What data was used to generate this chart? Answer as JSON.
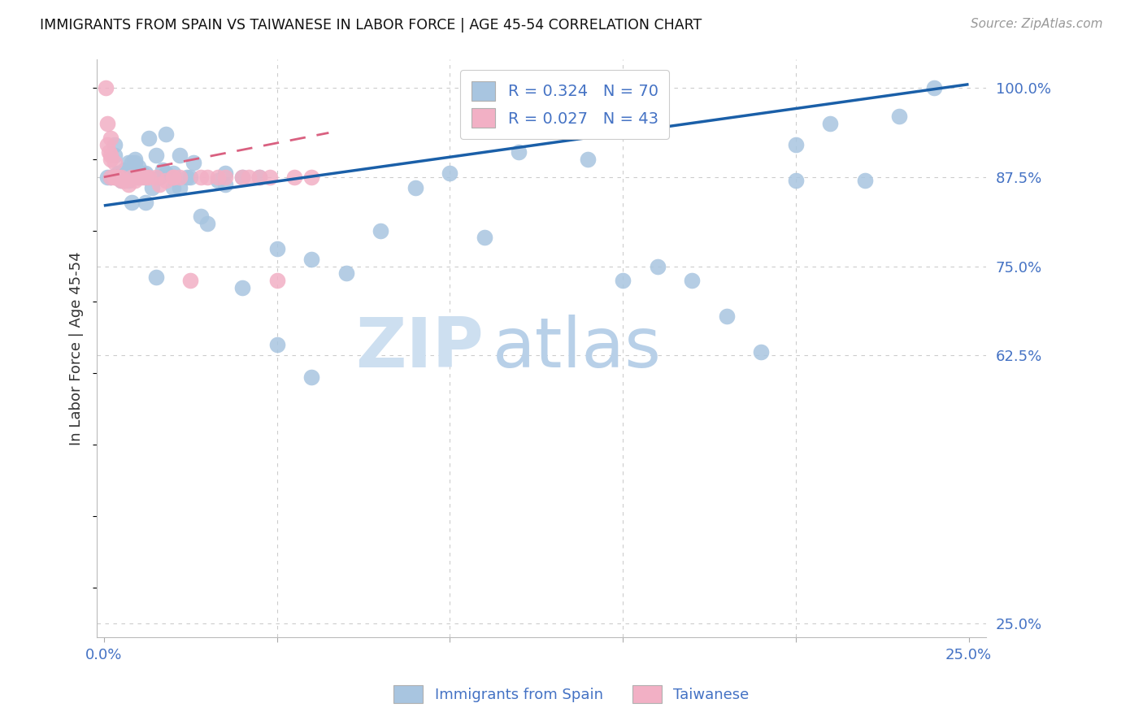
{
  "title": "IMMIGRANTS FROM SPAIN VS TAIWANESE IN LABOR FORCE | AGE 45-54 CORRELATION CHART",
  "source": "Source: ZipAtlas.com",
  "ylabel": "In Labor Force | Age 45-54",
  "legend_blue_R": "R = 0.324",
  "legend_blue_N": "N = 70",
  "legend_pink_R": "R = 0.027",
  "legend_pink_N": "N = 43",
  "legend_blue_label": "Immigrants from Spain",
  "legend_pink_label": "Taiwanese",
  "watermark_zip": "ZIP",
  "watermark_atlas": "atlas",
  "xlim": [
    -0.002,
    0.255
  ],
  "ylim": [
    0.23,
    1.04
  ],
  "yticks": [
    1.0,
    0.875,
    0.75,
    0.625,
    0.25
  ],
  "ytick_labels": [
    "100.0%",
    "87.5%",
    "75.0%",
    "62.5%",
    "25.0%"
  ],
  "xticks": [
    0.0,
    0.05,
    0.1,
    0.15,
    0.2,
    0.25
  ],
  "xtick_labels": [
    "0.0%",
    "",
    "",
    "",
    "",
    "25.0%"
  ],
  "blue_dot_color": "#a8c5e0",
  "blue_line_color": "#1a5fa8",
  "pink_dot_color": "#f2b0c5",
  "pink_line_color": "#d96080",
  "axis_label_color": "#4472c4",
  "grid_color": "#cccccc",
  "title_color": "#111111",
  "source_color": "#999999",
  "ylabel_color": "#333333",
  "background_color": "#ffffff",
  "blue_x": [
    0.001,
    0.002,
    0.003,
    0.004,
    0.005,
    0.006,
    0.007,
    0.008,
    0.009,
    0.01,
    0.011,
    0.012,
    0.013,
    0.015,
    0.017,
    0.018,
    0.02,
    0.022,
    0.024,
    0.026,
    0.003,
    0.004,
    0.005,
    0.006,
    0.007,
    0.008,
    0.009,
    0.01,
    0.012,
    0.014,
    0.016,
    0.018,
    0.02,
    0.022,
    0.025,
    0.028,
    0.03,
    0.033,
    0.035,
    0.04,
    0.045,
    0.05,
    0.06,
    0.07,
    0.08,
    0.09,
    0.1,
    0.11,
    0.12,
    0.13,
    0.14,
    0.15,
    0.16,
    0.17,
    0.18,
    0.19,
    0.2,
    0.21,
    0.22,
    0.23,
    0.008,
    0.01,
    0.012,
    0.015,
    0.035,
    0.04,
    0.05,
    0.06,
    0.2,
    0.24
  ],
  "blue_y": [
    0.875,
    0.875,
    0.905,
    0.88,
    0.88,
    0.885,
    0.895,
    0.895,
    0.895,
    0.89,
    0.88,
    0.875,
    0.93,
    0.905,
    0.885,
    0.935,
    0.88,
    0.905,
    0.875,
    0.895,
    0.92,
    0.88,
    0.87,
    0.875,
    0.87,
    0.875,
    0.9,
    0.88,
    0.88,
    0.86,
    0.875,
    0.88,
    0.86,
    0.86,
    0.875,
    0.82,
    0.81,
    0.87,
    0.88,
    0.875,
    0.875,
    0.775,
    0.76,
    0.74,
    0.8,
    0.86,
    0.88,
    0.79,
    0.91,
    1.0,
    0.9,
    0.73,
    0.75,
    0.73,
    0.68,
    0.63,
    0.87,
    0.95,
    0.87,
    0.96,
    0.84,
    0.875,
    0.84,
    0.735,
    0.865,
    0.72,
    0.64,
    0.595,
    0.92,
    1.0
  ],
  "pink_x": [
    0.0005,
    0.001,
    0.0015,
    0.002,
    0.002,
    0.002,
    0.003,
    0.003,
    0.003,
    0.004,
    0.004,
    0.005,
    0.005,
    0.006,
    0.006,
    0.007,
    0.008,
    0.009,
    0.01,
    0.011,
    0.012,
    0.013,
    0.015,
    0.016,
    0.018,
    0.02,
    0.022,
    0.025,
    0.028,
    0.03,
    0.033,
    0.035,
    0.04,
    0.042,
    0.045,
    0.048,
    0.05,
    0.055,
    0.06,
    0.001,
    0.002,
    0.004,
    0.02
  ],
  "pink_y": [
    1.0,
    0.95,
    0.91,
    0.93,
    0.905,
    0.9,
    0.895,
    0.875,
    0.875,
    0.875,
    0.875,
    0.875,
    0.87,
    0.87,
    0.87,
    0.865,
    0.875,
    0.87,
    0.875,
    0.875,
    0.875,
    0.875,
    0.875,
    0.865,
    0.87,
    0.875,
    0.875,
    0.73,
    0.875,
    0.875,
    0.875,
    0.875,
    0.875,
    0.875,
    0.875,
    0.875,
    0.73,
    0.875,
    0.875,
    0.92,
    0.875,
    0.875,
    0.875
  ]
}
